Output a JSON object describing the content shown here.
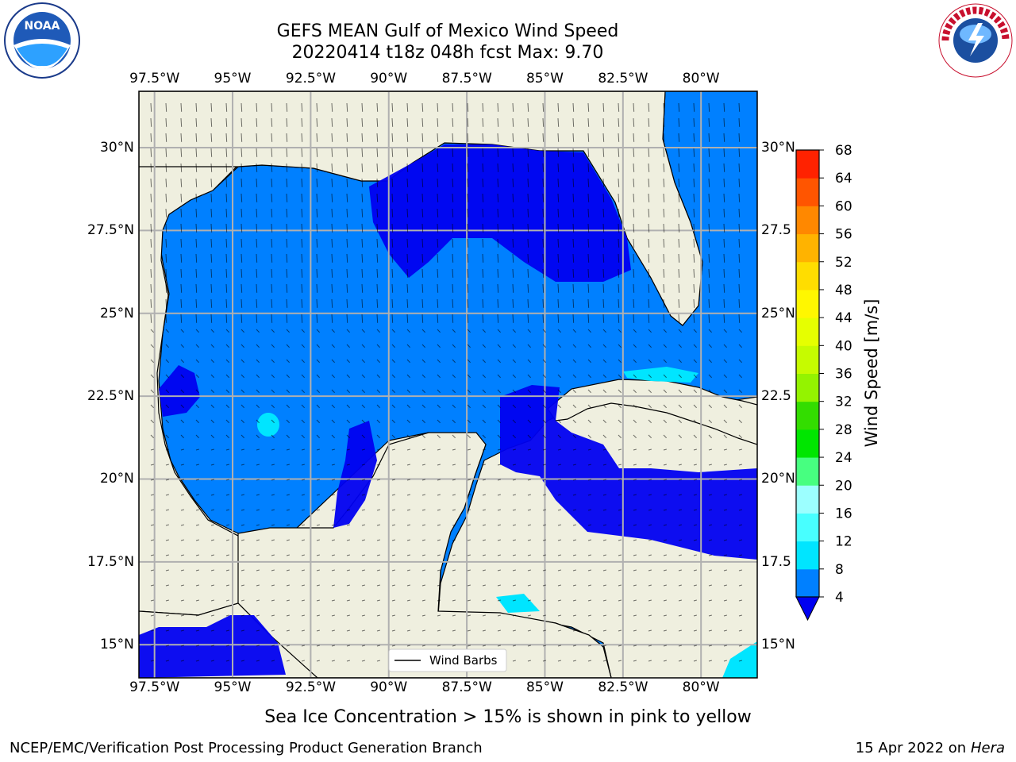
{
  "title_line1": "GEFS MEAN Gulf of Mexico Wind Speed",
  "title_line2": "20220414 t18z 048h fcst   Max: 9.70",
  "footnote": "Sea Ice Concentration > 15% is shown in pink to yellow",
  "credit_left": "NCEP/EMC/Verification Post Processing Product Generation Branch",
  "credit_right_date": "15 Apr 2022 on ",
  "credit_right_host": "Hera",
  "legend_label": "Wind Barbs",
  "colorbar": {
    "label": "Wind Speed [m/s]",
    "ticks": [
      "4",
      "8",
      "12",
      "16",
      "20",
      "24",
      "28",
      "32",
      "36",
      "40",
      "44",
      "48",
      "52",
      "56",
      "60",
      "64",
      "68"
    ],
    "colors": [
      "#0080ff",
      "#00e5ff",
      "#48ffff",
      "#9cffff",
      "#47ff80",
      "#00e600",
      "#33dd00",
      "#94f300",
      "#c6fb00",
      "#e6ff00",
      "#fff700",
      "#ffdd00",
      "#ffb300",
      "#ff8800",
      "#ff5500",
      "#ff2200"
    ],
    "under_color": "#0000f0"
  },
  "map": {
    "lon_labels": [
      "97.5°W",
      "95°W",
      "92.5°W",
      "90°W",
      "87.5°W",
      "85°W",
      "82.5°W",
      "80°W"
    ],
    "lon_values": [
      -97.5,
      -95,
      -92.5,
      -90,
      -87.5,
      -85,
      -82.5,
      -80
    ],
    "lat_labels": [
      "30°N",
      "27.5°N",
      "25°N",
      "22.5°N",
      "20°N",
      "17.5°N",
      "15°N"
    ],
    "lat_values": [
      30,
      27.5,
      25,
      22.5,
      20,
      17.5,
      15
    ],
    "right_lat_labels": [
      "30°N",
      "27.5",
      "25°N",
      "22.5",
      "20°N",
      "17.5",
      "15°N"
    ],
    "lon_range": [
      -98,
      -78.2
    ],
    "lat_range": [
      14,
      31.7
    ],
    "land_color": "#efefdf",
    "ocean_base_color": "#0080ff",
    "low_wind_color": "#0000f0",
    "high_wind_color": "#00e5ff"
  },
  "logos": {
    "noaa": "noaa-logo",
    "nws": "nws-logo"
  }
}
